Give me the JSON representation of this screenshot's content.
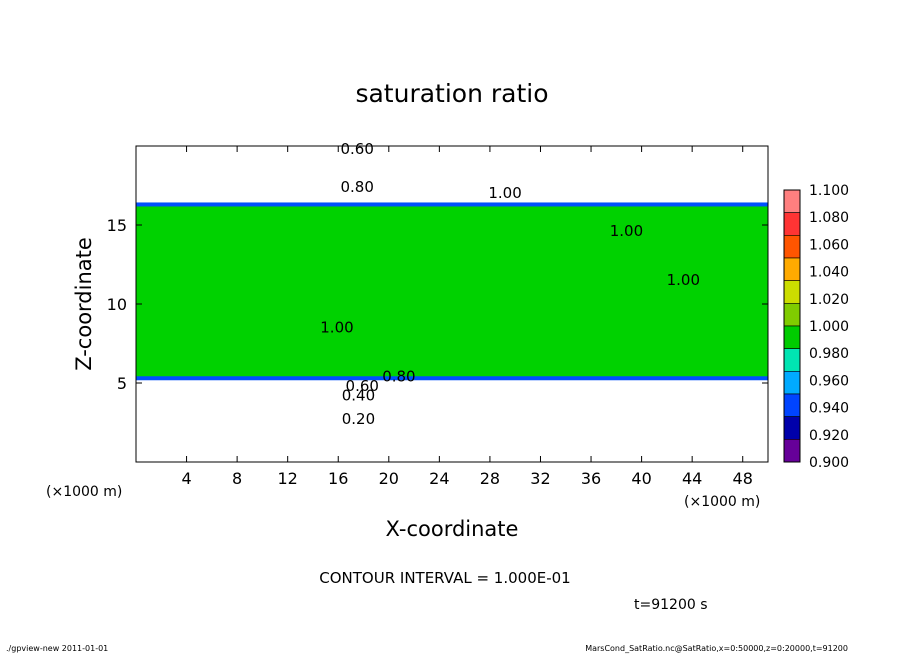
{
  "chart_data": {
    "type": "heatmap",
    "title": "saturation ratio",
    "xlabel": "X-coordinate",
    "ylabel": "Z-coordinate",
    "x_unit_label": "(×1000 m)",
    "y_unit_label": "(×1000 m)",
    "xlim": [
      0,
      50
    ],
    "ylim": [
      0,
      20
    ],
    "x_ticks": [
      4,
      8,
      12,
      16,
      20,
      24,
      28,
      32,
      36,
      40,
      44,
      48
    ],
    "y_ticks": [
      5,
      10,
      15
    ],
    "layers": [
      {
        "z_from": 0,
        "z_to": 5.3,
        "value_range": "below 0.90",
        "color": "#ffffff"
      },
      {
        "z_from": 5.3,
        "z_to": 16.3,
        "value_range": "0.98–1.00",
        "color": "#00d200"
      },
      {
        "z_from": 16.3,
        "z_to": 20,
        "value_range": "below 0.90",
        "color": "#ffffff"
      }
    ],
    "contour_labels": [
      {
        "text": "0.60",
        "x": 17.5,
        "z": 19.5
      },
      {
        "text": "0.80",
        "x": 17.5,
        "z": 17.1
      },
      {
        "text": "1.00",
        "x": 29.2,
        "z": 16.7
      },
      {
        "text": "1.00",
        "x": 38.8,
        "z": 14.3
      },
      {
        "text": "1.00",
        "x": 43.3,
        "z": 11.2
      },
      {
        "text": "1.00",
        "x": 15.9,
        "z": 8.2
      },
      {
        "text": "0.80",
        "x": 20.8,
        "z": 5.1
      },
      {
        "text": "0.60",
        "x": 17.9,
        "z": 4.5
      },
      {
        "text": "0.40",
        "x": 17.6,
        "z": 3.9
      },
      {
        "text": "0.20",
        "x": 17.6,
        "z": 2.4
      }
    ],
    "colorbar": {
      "levels": [
        "1.100",
        "1.080",
        "1.060",
        "1.040",
        "1.020",
        "1.000",
        "0.980",
        "0.960",
        "0.940",
        "0.920",
        "0.900"
      ],
      "colors": [
        "#ff7f7f",
        "#ff3434",
        "#ff5500",
        "#ffaa00",
        "#ccdd00",
        "#80cc00",
        "#00cc00",
        "#00e5b2",
        "#00aaff",
        "#0044ff",
        "#0000aa",
        "#660099"
      ]
    },
    "contour_interval_text": "CONTOUR INTERVAL = 1.000E-01",
    "time_text": "t=91200 s"
  },
  "footer": {
    "left": "./gpview-new 2011-01-01",
    "right": "MarsCond_SatRatio.nc@SatRatio,x=0:50000,z=0:20000,t=91200"
  }
}
